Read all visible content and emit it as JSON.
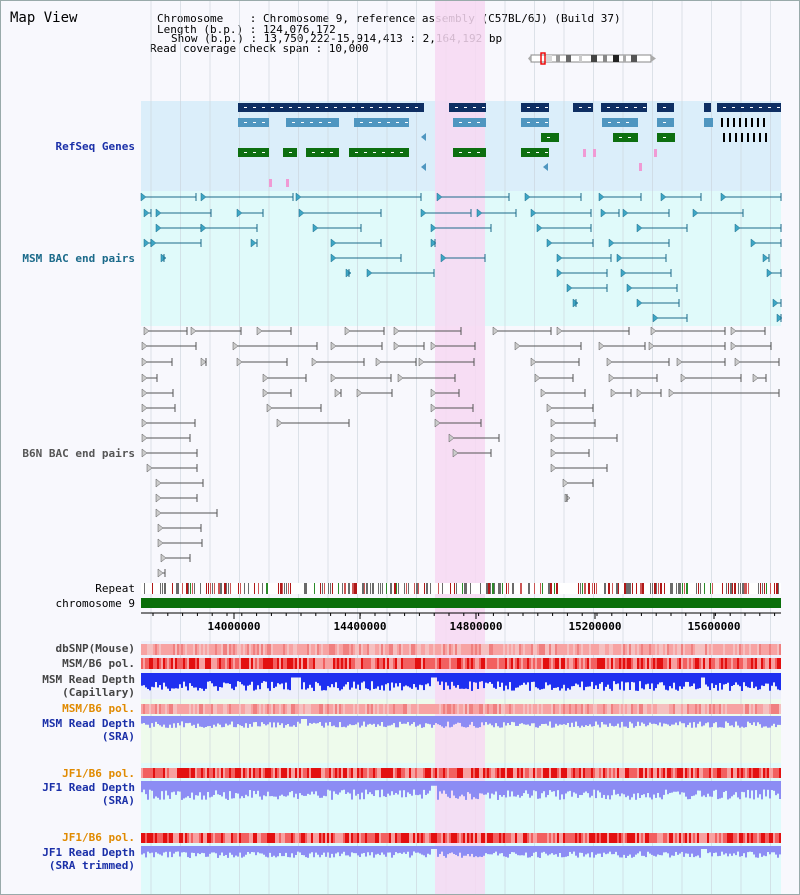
{
  "view": {
    "title": "Map View"
  },
  "info": {
    "chromosome": "Chromosome    : Chromosome 9, reference assembly (C57BL/6J) (Build 37)",
    "length": "Length (b.p.) : 124,076,172",
    "show": "Show (b.p.) : 13,750,222-15,914,413 : 2,164,192 bp",
    "coverage": "Read coverage check span : 10,000"
  },
  "tracks": {
    "refseq": "RefSeq Genes",
    "msm_bac": "MSM BAC end pairs",
    "b6n_bac": "B6N BAC end pairs",
    "repeat": "Repeat",
    "chromosome": "chromosome 9",
    "dbsnp": "dbSNP(Mouse)",
    "msm_b6_pol_1": "MSM/B6 pol.",
    "msm_read_depth_cap": "MSM Read Depth\n(Capillary)",
    "msm_b6_pol_2": "MSM/B6 pol.",
    "msm_read_depth_sra": "MSM Read Depth\n(SRA)",
    "jf1_b6_pol_1": "JF1/B6 pol.",
    "jf1_read_depth_sra": "JF1 Read Depth\n(SRA)",
    "jf1_b6_pol_2": "JF1/B6 pol.",
    "jf1_read_depth_trim": "JF1 Read Depth\n(SRA trimmed)"
  },
  "axis": {
    "ticks": [
      "14000000",
      "14400000",
      "14800000",
      "15200000",
      "15600000"
    ]
  },
  "colors": {
    "refseq_bg": "#dbeefa",
    "msm_bg": "#e0fafa",
    "highlight": "#f7d8f2",
    "gene_dark": "#0e2f63",
    "gene_mid": "#4f96c0",
    "gene_green": "#0d6f10",
    "chrom_bar": "#0a6f0a",
    "depth_blue": "#1e2ff0",
    "depth_light": "#8c8cf4"
  }
}
